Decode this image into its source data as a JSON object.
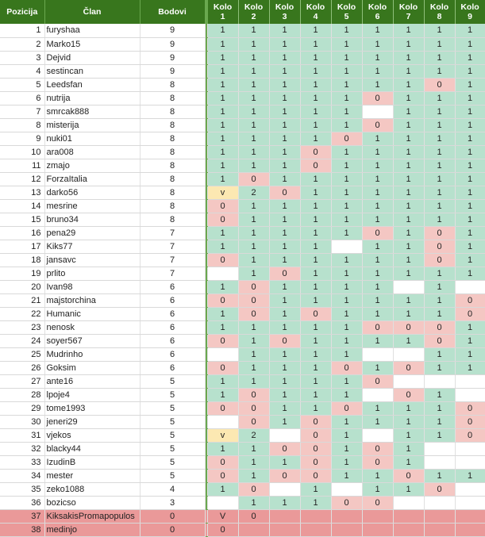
{
  "headers": {
    "pozicija": "Pozicija",
    "clan": "Član",
    "bodovi": "Bodovi",
    "kola": [
      {
        "word": "Kolo",
        "num": "1"
      },
      {
        "word": "Kolo",
        "num": "2"
      },
      {
        "word": "Kolo",
        "num": "3"
      },
      {
        "word": "Kolo",
        "num": "4"
      },
      {
        "word": "Kolo",
        "num": "5"
      },
      {
        "word": "Kolo",
        "num": "6"
      },
      {
        "word": "Kolo",
        "num": "7"
      },
      {
        "word": "Kolo",
        "num": "8"
      },
      {
        "word": "Kolo",
        "num": "9"
      }
    ]
  },
  "colors": {
    "header": "#38761d",
    "one": "#b7e1cd",
    "zero": "#f4c7c3",
    "v": "#fce8b2",
    "bottom_row": "#ea9999"
  },
  "rows": [
    {
      "pos": "1",
      "name": "furyshaa",
      "pts": "9",
      "r": [
        "1",
        "1",
        "1",
        "1",
        "1",
        "1",
        "1",
        "1",
        "1"
      ]
    },
    {
      "pos": "2",
      "name": "Marko15",
      "pts": "9",
      "r": [
        "1",
        "1",
        "1",
        "1",
        "1",
        "1",
        "1",
        "1",
        "1"
      ]
    },
    {
      "pos": "3",
      "name": "Dejvid",
      "pts": "9",
      "r": [
        "1",
        "1",
        "1",
        "1",
        "1",
        "1",
        "1",
        "1",
        "1"
      ]
    },
    {
      "pos": "4",
      "name": "sestincan",
      "pts": "9",
      "r": [
        "1",
        "1",
        "1",
        "1",
        "1",
        "1",
        "1",
        "1",
        "1"
      ]
    },
    {
      "pos": "5",
      "name": "Leedsfan",
      "pts": "8",
      "r": [
        "1",
        "1",
        "1",
        "1",
        "1",
        "1",
        "1",
        "0",
        "1"
      ]
    },
    {
      "pos": "6",
      "name": "nutrija",
      "pts": "8",
      "r": [
        "1",
        "1",
        "1",
        "1",
        "1",
        "0",
        "1",
        "1",
        "1"
      ]
    },
    {
      "pos": "7",
      "name": "smrcak888",
      "pts": "8",
      "r": [
        "1",
        "1",
        "1",
        "1",
        "1",
        "",
        "1",
        "1",
        "1"
      ]
    },
    {
      "pos": "8",
      "name": "misterija",
      "pts": "8",
      "r": [
        "1",
        "1",
        "1",
        "1",
        "1",
        "0",
        "1",
        "1",
        "1"
      ]
    },
    {
      "pos": "9",
      "name": "nuki01",
      "pts": "8",
      "r": [
        "1",
        "1",
        "1",
        "1",
        "0",
        "1",
        "1",
        "1",
        "1"
      ]
    },
    {
      "pos": "10",
      "name": "ara008",
      "pts": "8",
      "r": [
        "1",
        "1",
        "1",
        "0",
        "1",
        "1",
        "1",
        "1",
        "1"
      ]
    },
    {
      "pos": "11",
      "name": "zmajo",
      "pts": "8",
      "r": [
        "1",
        "1",
        "1",
        "0",
        "1",
        "1",
        "1",
        "1",
        "1"
      ]
    },
    {
      "pos": "12",
      "name": "ForzaItalia",
      "pts": "8",
      "r": [
        "1",
        "0",
        "1",
        "1",
        "1",
        "1",
        "1",
        "1",
        "1"
      ]
    },
    {
      "pos": "13",
      "name": "darko56",
      "pts": "8",
      "r": [
        "v",
        "2",
        "0",
        "1",
        "1",
        "1",
        "1",
        "1",
        "1"
      ]
    },
    {
      "pos": "14",
      "name": "mesrine",
      "pts": "8",
      "r": [
        "0",
        "1",
        "1",
        "1",
        "1",
        "1",
        "1",
        "1",
        "1"
      ]
    },
    {
      "pos": "15",
      "name": "bruno34",
      "pts": "8",
      "r": [
        "0",
        "1",
        "1",
        "1",
        "1",
        "1",
        "1",
        "1",
        "1"
      ]
    },
    {
      "pos": "16",
      "name": "pena29",
      "pts": "7",
      "r": [
        "1",
        "1",
        "1",
        "1",
        "1",
        "0",
        "1",
        "0",
        "1"
      ]
    },
    {
      "pos": "17",
      "name": "Kiks77",
      "pts": "7",
      "r": [
        "1",
        "1",
        "1",
        "1",
        "",
        "1",
        "1",
        "0",
        "1"
      ]
    },
    {
      "pos": "18",
      "name": "jansavc",
      "pts": "7",
      "r": [
        "0",
        "1",
        "1",
        "1",
        "1",
        "1",
        "1",
        "0",
        "1"
      ]
    },
    {
      "pos": "19",
      "name": "prlito",
      "pts": "7",
      "r": [
        "",
        "1",
        "0",
        "1",
        "1",
        "1",
        "1",
        "1",
        "1"
      ]
    },
    {
      "pos": "20",
      "name": "Ivan98",
      "pts": "6",
      "r": [
        "1",
        "0",
        "1",
        "1",
        "1",
        "1",
        "",
        "1",
        ""
      ]
    },
    {
      "pos": "21",
      "name": "majstorchina",
      "pts": "6",
      "r": [
        "0",
        "0",
        "1",
        "1",
        "1",
        "1",
        "1",
        "1",
        "0"
      ]
    },
    {
      "pos": "22",
      "name": "Humanic",
      "pts": "6",
      "r": [
        "1",
        "0",
        "1",
        "0",
        "1",
        "1",
        "1",
        "1",
        "0"
      ]
    },
    {
      "pos": "23",
      "name": "nenosk",
      "pts": "6",
      "r": [
        "1",
        "1",
        "1",
        "1",
        "1",
        "0",
        "0",
        "0",
        "1"
      ]
    },
    {
      "pos": "24",
      "name": "soyer567",
      "pts": "6",
      "r": [
        "0",
        "1",
        "0",
        "1",
        "1",
        "1",
        "1",
        "0",
        "1"
      ]
    },
    {
      "pos": "25",
      "name": "Mudrinho",
      "pts": "6",
      "r": [
        "",
        "1",
        "1",
        "1",
        "1",
        "",
        "",
        "1",
        "1"
      ]
    },
    {
      "pos": "26",
      "name": "Goksim",
      "pts": "6",
      "r": [
        "0",
        "1",
        "1",
        "1",
        "0",
        "1",
        "0",
        "1",
        "1"
      ]
    },
    {
      "pos": "27",
      "name": "ante16",
      "pts": "5",
      "r": [
        "1",
        "1",
        "1",
        "1",
        "1",
        "0",
        "",
        "",
        ""
      ]
    },
    {
      "pos": "28",
      "name": "lpoje4",
      "pts": "5",
      "r": [
        "1",
        "0",
        "1",
        "1",
        "1",
        "",
        "0",
        "1",
        ""
      ]
    },
    {
      "pos": "29",
      "name": "tome1993",
      "pts": "5",
      "r": [
        "0",
        "0",
        "1",
        "1",
        "0",
        "1",
        "1",
        "1",
        "0"
      ]
    },
    {
      "pos": "30",
      "name": "jeneri29",
      "pts": "5",
      "r": [
        "",
        "0",
        "1",
        "0",
        "1",
        "1",
        "1",
        "1",
        "0"
      ]
    },
    {
      "pos": "31",
      "name": "vjekos",
      "pts": "5",
      "r": [
        "v",
        "2",
        "",
        "0",
        "1",
        "",
        "1",
        "1",
        "0"
      ]
    },
    {
      "pos": "32",
      "name": "blacky44",
      "pts": "5",
      "r": [
        "1",
        "1",
        "0",
        "0",
        "1",
        "0",
        "1",
        "",
        ""
      ]
    },
    {
      "pos": "33",
      "name": "IzudinB",
      "pts": "5",
      "r": [
        "0",
        "1",
        "1",
        "0",
        "1",
        "0",
        "1",
        "",
        ""
      ]
    },
    {
      "pos": "34",
      "name": "mester",
      "pts": "5",
      "r": [
        "0",
        "1",
        "0",
        "0",
        "1",
        "1",
        "0",
        "1",
        "1"
      ]
    },
    {
      "pos": "35",
      "name": "zeko1088",
      "pts": "4",
      "r": [
        "1",
        "0",
        "",
        "1",
        "",
        "1",
        "1",
        "0",
        ""
      ]
    },
    {
      "pos": "36",
      "name": "bozicso",
      "pts": "3",
      "r": [
        "",
        "1",
        "1",
        "1",
        "0",
        "0",
        "",
        "",
        ""
      ]
    },
    {
      "pos": "37",
      "name": "KiksakisPromapopulos",
      "pts": "0",
      "r": [
        "V",
        "0",
        "",
        "",
        "",
        "",
        "",
        "",
        ""
      ]
    },
    {
      "pos": "38",
      "name": "medinjo",
      "pts": "0",
      "r": [
        "0",
        "",
        "",
        "",
        "",
        "",
        "",
        "",
        ""
      ]
    }
  ]
}
